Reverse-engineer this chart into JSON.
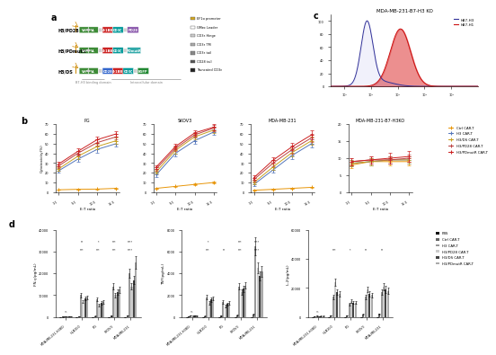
{
  "panel_b": {
    "et_ratios": [
      "1:1",
      "5:1",
      "10:1",
      "15:1"
    ],
    "cell_lines": [
      "PG",
      "SKOV3",
      "MDA-MB-231",
      "MDA-MB-231-B7-H3KO"
    ],
    "series_order": [
      "Ctrl CAR-T",
      "H3 CAR-T",
      "H3/DS CAR-T",
      "H3/PD28 CAR-T",
      "H3/PDmutR CAR-T"
    ],
    "colors": {
      "Ctrl CAR-T": "#E8960A",
      "H3 CAR-T": "#5577BB",
      "H3/DS CAR-T": "#C8A020",
      "H3/PD28 CAR-T": "#BB4444",
      "H3/PDmutR CAR-T": "#CC2222"
    },
    "data": {
      "PG": {
        "Ctrl CAR-T": [
          2.5,
          3.0,
          3.2,
          4.0
        ],
        "H3 CAR-T": [
          22,
          34,
          44,
          50
        ],
        "H3/DS CAR-T": [
          24,
          37,
          47,
          53
        ],
        "H3/PD28 CAR-T": [
          27,
          40,
          51,
          57
        ],
        "H3/PDmutR CAR-T": [
          29,
          42,
          54,
          60
        ]
      },
      "SKOV3": {
        "Ctrl CAR-T": [
          4,
          6,
          8,
          10
        ],
        "H3 CAR-T": [
          18,
          40,
          53,
          62
        ],
        "H3/DS CAR-T": [
          21,
          43,
          57,
          64
        ],
        "H3/PD28 CAR-T": [
          24,
          45,
          59,
          66
        ],
        "H3/PDmutR CAR-T": [
          26,
          47,
          61,
          67
        ]
      },
      "MDA-MB-231": {
        "Ctrl CAR-T": [
          2,
          3,
          4,
          5
        ],
        "H3 CAR-T": [
          8,
          23,
          38,
          50
        ],
        "H3/DS CAR-T": [
          10,
          26,
          41,
          53
        ],
        "H3/PD28 CAR-T": [
          13,
          30,
          44,
          56
        ],
        "H3/PDmutR CAR-T": [
          15,
          33,
          47,
          59
        ]
      },
      "MDA-MB-231-B7-H3KO": {
        "Ctrl CAR-T": [
          8,
          9,
          9,
          9
        ],
        "H3 CAR-T": [
          8.5,
          9,
          9.5,
          9.5
        ],
        "H3/DS CAR-T": [
          8.5,
          9,
          9.5,
          9.5
        ],
        "H3/PD28 CAR-T": [
          9,
          9.5,
          9.5,
          10
        ],
        "H3/PDmutR CAR-T": [
          9,
          9.5,
          10,
          10.5
        ]
      }
    },
    "yerr": {
      "PG": {
        "Ctrl CAR-T": [
          0.3,
          0.3,
          0.3,
          0.4
        ],
        "H3 CAR-T": [
          2,
          2.5,
          3,
          3
        ],
        "H3/DS CAR-T": [
          2,
          2.5,
          3,
          3
        ],
        "H3/PD28 CAR-T": [
          2,
          2.5,
          3,
          3
        ],
        "H3/PDmutR CAR-T": [
          2,
          3,
          3,
          3
        ]
      },
      "SKOV3": {
        "Ctrl CAR-T": [
          0.5,
          0.5,
          1,
          1
        ],
        "H3 CAR-T": [
          2,
          3,
          3,
          3
        ],
        "H3/DS CAR-T": [
          2,
          3,
          3,
          3
        ],
        "H3/PD28 CAR-T": [
          2,
          3,
          3,
          3
        ],
        "H3/PDmutR CAR-T": [
          2,
          3,
          3,
          3
        ]
      },
      "MDA-MB-231": {
        "Ctrl CAR-T": [
          0.3,
          0.3,
          0.4,
          0.5
        ],
        "H3 CAR-T": [
          2,
          3,
          4,
          4
        ],
        "H3/DS CAR-T": [
          2,
          3,
          4,
          4
        ],
        "H3/PD28 CAR-T": [
          2,
          3,
          4,
          4
        ],
        "H3/PDmutR CAR-T": [
          2,
          3,
          4,
          5
        ]
      },
      "MDA-MB-231-B7-H3KO": {
        "Ctrl CAR-T": [
          1,
          1,
          1,
          1
        ],
        "H3 CAR-T": [
          1,
          1,
          1,
          1
        ],
        "H3/DS CAR-T": [
          1,
          1,
          1,
          1
        ],
        "H3/PD28 CAR-T": [
          1,
          1,
          1,
          1
        ],
        "H3/PDmutR CAR-T": [
          1,
          1,
          1.5,
          1.5
        ]
      }
    },
    "ylims": [
      70,
      70,
      70,
      20
    ],
    "yticks": [
      [
        0,
        10,
        20,
        30,
        40,
        50,
        60,
        70
      ],
      [
        0,
        10,
        20,
        30,
        40,
        50,
        60,
        70
      ],
      [
        0,
        10,
        20,
        30,
        40,
        50,
        60,
        70
      ],
      [
        0,
        5,
        10,
        15,
        20
      ]
    ]
  },
  "panel_d": {
    "cell_lines_x": [
      "MDA-MB-231-H3KO",
      "HLB100",
      "PG",
      "SKOV3",
      "MDA-MB-231"
    ],
    "cell_lines_display": [
      "MDA-MB-231-H3KO",
      "HLB100",
      "PG",
      "SKOV3",
      "MDA-MB-231"
    ],
    "cytokines": [
      "IFN-γ(pg/mL)",
      "TNF(pg/mL)",
      "IL-2(pg/mL)"
    ],
    "cytokine_ylabels": [
      "IFN-γ(pg/mL)",
      "TNF(pg/mL)",
      "IL-2(pg/mL)"
    ],
    "series_order": [
      "PBS",
      "Ctrl CAR-T",
      "H3 CAR-T",
      "H3/PD28 CAR-T",
      "H3/DS CAR-T",
      "H3/PDmutR CAR-T"
    ],
    "bar_colors": [
      "#111111",
      "#666666",
      "#999999",
      "#cccccc",
      "#444444",
      "#aaaaaa"
    ],
    "ylims": [
      40000,
      8000,
      60000
    ],
    "yticks": [
      [
        0,
        10000,
        20000,
        30000,
        40000
      ],
      [
        0,
        2000,
        4000,
        6000,
        8000
      ],
      [
        0,
        20000,
        40000,
        60000
      ]
    ],
    "IFN-g": {
      "PBS": [
        50,
        50,
        50,
        50,
        50
      ],
      "Ctrl CAR-T": [
        100,
        200,
        400,
        500,
        600
      ],
      "H3 CAR-T": [
        300,
        10000,
        8000,
        14000,
        20000
      ],
      "H3/PD28 CAR-T": [
        200,
        7000,
        5500,
        10000,
        14000
      ],
      "H3/DS CAR-T": [
        250,
        8500,
        6500,
        11500,
        17000
      ],
      "H3/PDmutR CAR-T": [
        200,
        9000,
        7000,
        12500,
        25000
      ]
    },
    "IFN-g-err": {
      "PBS": [
        10,
        10,
        10,
        10,
        10
      ],
      "Ctrl CAR-T": [
        50,
        50,
        100,
        100,
        100
      ],
      "H3 CAR-T": [
        50,
        1000,
        800,
        1500,
        2000
      ],
      "H3/PD28 CAR-T": [
        30,
        700,
        600,
        1000,
        1500
      ],
      "H3/DS CAR-T": [
        40,
        900,
        700,
        1200,
        1800
      ],
      "H3/PDmutR CAR-T": [
        30,
        900,
        750,
        1300,
        3000
      ]
    },
    "TNF": {
      "PBS": [
        0,
        0,
        0,
        0,
        0
      ],
      "Ctrl CAR-T": [
        30,
        80,
        120,
        150,
        250
      ],
      "H3 CAR-T": [
        150,
        1800,
        1400,
        2800,
        6500
      ],
      "H3/PD28 CAR-T": [
        100,
        1300,
        1000,
        2300,
        4500
      ],
      "H3/DS CAR-T": [
        130,
        1600,
        1200,
        2600,
        3800
      ],
      "H3/PDmutR CAR-T": [
        100,
        1700,
        1300,
        2900,
        4200
      ]
    },
    "TNF-err": {
      "PBS": [
        0,
        0,
        0,
        0,
        0
      ],
      "Ctrl CAR-T": [
        10,
        20,
        30,
        40,
        60
      ],
      "H3 CAR-T": [
        20,
        200,
        150,
        300,
        800
      ],
      "H3/PD28 CAR-T": [
        15,
        150,
        100,
        250,
        500
      ],
      "H3/DS CAR-T": [
        20,
        180,
        120,
        280,
        400
      ],
      "H3/PDmutR CAR-T": [
        15,
        180,
        130,
        300,
        500
      ]
    },
    "IL-2": {
      "PBS": [
        0,
        0,
        0,
        0,
        0
      ],
      "Ctrl CAR-T": [
        400,
        900,
        1200,
        1800,
        2200
      ],
      "H3 CAR-T": [
        800,
        14000,
        9000,
        14000,
        17000
      ],
      "H3/PD28 CAR-T": [
        600,
        24000,
        11000,
        19000,
        21000
      ],
      "H3/DS CAR-T": [
        700,
        17000,
        10000,
        16000,
        19000
      ],
      "H3/PDmutR CAR-T": [
        700,
        16000,
        10000,
        15000,
        18000
      ]
    },
    "IL-2-err": {
      "PBS": [
        0,
        0,
        0,
        0,
        0
      ],
      "Ctrl CAR-T": [
        50,
        100,
        150,
        200,
        300
      ],
      "H3 CAR-T": [
        100,
        1500,
        1000,
        1500,
        2000
      ],
      "H3/PD28 CAR-T": [
        80,
        2500,
        1200,
        2000,
        2500
      ],
      "H3/DS CAR-T": [
        90,
        1800,
        1100,
        1700,
        2200
      ],
      "H3/PDmutR CAR-T": [
        90,
        1700,
        1100,
        1600,
        2000
      ]
    },
    "sig_IFN": {
      "1": [
        [
          "***",
          "**",
          "***",
          "***"
        ],
        [
          "***",
          "**",
          "***",
          "***"
        ]
      ],
      "2": [
        [
          "***",
          "*",
          "***",
          "****"
        ],
        [
          "*",
          "*",
          "**",
          "***"
        ]
      ],
      "3": [
        [
          "***",
          "**",
          "***",
          "****"
        ],
        [
          "***",
          "**",
          "***",
          "***"
        ]
      ],
      "4": [
        [
          "****",
          "****",
          "****",
          "****"
        ],
        [
          "***",
          "***",
          "***",
          "***"
        ]
      ]
    }
  },
  "panel_a": {
    "constructs": [
      "H3/PD28",
      "H3/PDmutR",
      "H3/DS"
    ],
    "legend_items": [
      [
        "#D4A820",
        "EF1α promoter"
      ],
      [
        "#FFFFFF",
        "GMec Leader"
      ],
      [
        "#CCCCCC",
        "CD3ε Hinge"
      ],
      [
        "#AAAAAA",
        "CD3ε TM"
      ],
      [
        "#888888",
        "CD3ε tail"
      ],
      [
        "#555555",
        "CD28 tail"
      ],
      [
        "#222222",
        "Truncated CD3ε"
      ]
    ]
  },
  "panel_c": {
    "title": "MDA-MB-231-B7-H3 KO",
    "legend": [
      "hB7-H3",
      "hB7-H1"
    ],
    "line_color": "#4444AA",
    "fill_color": "#DD2222"
  }
}
